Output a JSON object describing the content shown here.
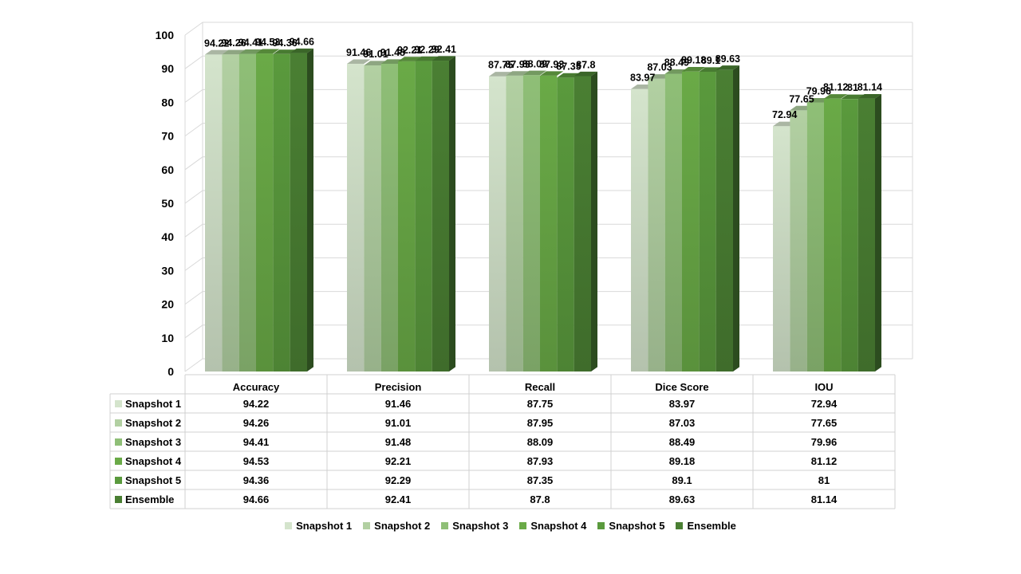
{
  "chart_data": {
    "type": "bar",
    "categories": [
      "Accuracy",
      "Precision",
      "Recall",
      "Dice Score",
      "IOU"
    ],
    "series": [
      {
        "name": "Snapshot 1",
        "values": [
          94.22,
          91.46,
          87.75,
          83.97,
          72.94
        ],
        "color": "#d4e4cc"
      },
      {
        "name": "Snapshot 2",
        "values": [
          94.26,
          91.01,
          87.95,
          87.03,
          77.65
        ],
        "color": "#b2d0a2"
      },
      {
        "name": "Snapshot 3",
        "values": [
          94.41,
          91.48,
          88.09,
          88.49,
          79.96
        ],
        "color": "#8fbf77"
      },
      {
        "name": "Snapshot 4",
        "values": [
          94.53,
          92.21,
          87.93,
          89.18,
          81.12
        ],
        "color": "#6aaa47"
      },
      {
        "name": "Snapshot 5",
        "values": [
          94.36,
          92.29,
          87.35,
          89.1,
          81
        ],
        "color": "#5a9a3d"
      },
      {
        "name": "Ensemble",
        "values": [
          94.66,
          92.41,
          87.8,
          89.63,
          81.14
        ],
        "color": "#4a7f33"
      }
    ],
    "table_values": [
      [
        "94.22",
        "91.46",
        "87.75",
        "83.97",
        "72.94"
      ],
      [
        "94.26",
        "91.01",
        "87.95",
        "87.03",
        "77.65"
      ],
      [
        "94.41",
        "91.48",
        "88.09",
        "88.49",
        "79.96"
      ],
      [
        "94.53",
        "92.21",
        "87.93",
        "89.18",
        "81.12"
      ],
      [
        "94.36",
        "92.29",
        "87.35",
        "89.1",
        "81"
      ],
      [
        "94.66",
        "92.41",
        "87.8",
        "89.63",
        "81.14"
      ]
    ],
    "y_ticks": [
      "0",
      "10",
      "20",
      "30",
      "40",
      "50",
      "60",
      "70",
      "80",
      "90",
      "100"
    ],
    "ylim": [
      0,
      100
    ],
    "grid": true,
    "legend": "bottom",
    "data_table": true
  }
}
